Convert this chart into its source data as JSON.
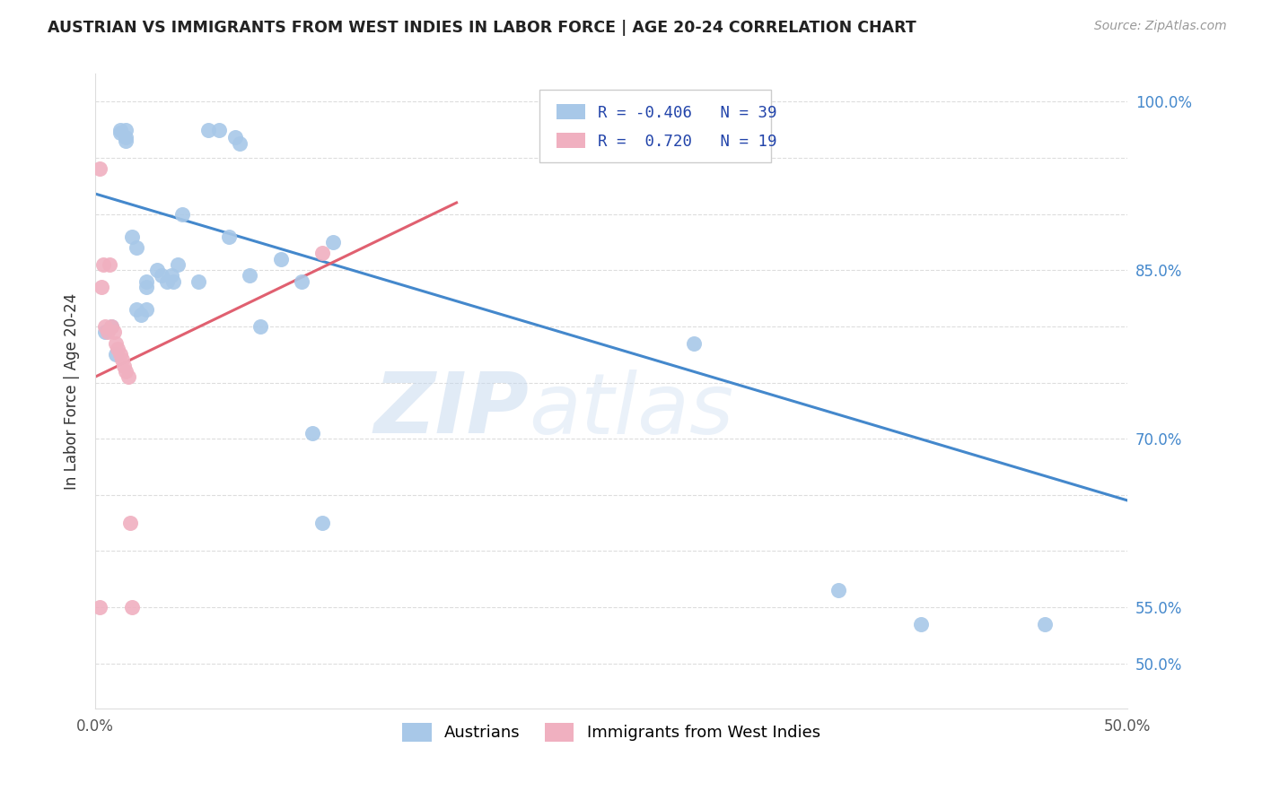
{
  "title": "AUSTRIAN VS IMMIGRANTS FROM WEST INDIES IN LABOR FORCE | AGE 20-24 CORRELATION CHART",
  "source": "Source: ZipAtlas.com",
  "ylabel": "In Labor Force | Age 20-24",
  "xlim": [
    0.0,
    0.5
  ],
  "ylim": [
    0.46,
    1.025
  ],
  "xticks": [
    0.0,
    0.1,
    0.2,
    0.3,
    0.4,
    0.5
  ],
  "xticklabels": [
    "0.0%",
    "",
    "",
    "",
    "",
    "50.0%"
  ],
  "yticks_right": [
    0.5,
    0.55,
    0.6,
    0.65,
    0.7,
    0.75,
    0.8,
    0.85,
    0.9,
    0.95,
    1.0
  ],
  "ytick_labels_right": [
    "50.0%",
    "55.0%",
    "",
    "",
    "70.0%",
    "",
    "",
    "85.0%",
    "",
    "",
    "100.0%"
  ],
  "legend_r_blue": "-0.406",
  "legend_n_blue": "39",
  "legend_r_pink": "0.720",
  "legend_n_pink": "19",
  "blue_scatter_x": [
    0.005,
    0.008,
    0.01,
    0.012,
    0.012,
    0.015,
    0.015,
    0.015,
    0.018,
    0.02,
    0.02,
    0.022,
    0.025,
    0.025,
    0.025,
    0.03,
    0.032,
    0.035,
    0.037,
    0.038,
    0.04,
    0.042,
    0.05,
    0.055,
    0.06,
    0.065,
    0.068,
    0.07,
    0.075,
    0.08,
    0.09,
    0.1,
    0.105,
    0.11,
    0.115,
    0.29,
    0.36,
    0.4,
    0.46
  ],
  "blue_scatter_y": [
    0.795,
    0.8,
    0.775,
    0.975,
    0.972,
    0.968,
    0.965,
    0.975,
    0.88,
    0.87,
    0.815,
    0.81,
    0.84,
    0.835,
    0.815,
    0.85,
    0.845,
    0.84,
    0.845,
    0.84,
    0.855,
    0.9,
    0.84,
    0.975,
    0.975,
    0.88,
    0.968,
    0.963,
    0.845,
    0.8,
    0.86,
    0.84,
    0.705,
    0.625,
    0.875,
    0.785,
    0.565,
    0.535,
    0.535
  ],
  "pink_scatter_x": [
    0.002,
    0.003,
    0.004,
    0.005,
    0.006,
    0.007,
    0.008,
    0.009,
    0.01,
    0.011,
    0.012,
    0.013,
    0.014,
    0.015,
    0.016,
    0.017,
    0.018,
    0.11,
    0.002
  ],
  "pink_scatter_y": [
    0.94,
    0.835,
    0.855,
    0.8,
    0.795,
    0.855,
    0.8,
    0.795,
    0.785,
    0.78,
    0.775,
    0.77,
    0.765,
    0.76,
    0.755,
    0.625,
    0.55,
    0.865,
    0.55
  ],
  "blue_line_x": [
    0.0,
    0.5
  ],
  "blue_line_y": [
    0.918,
    0.645
  ],
  "pink_line_x": [
    0.0,
    0.175
  ],
  "pink_line_y": [
    0.755,
    0.91
  ],
  "watermark_zip": "ZIP",
  "watermark_atlas": "atlas",
  "bg_color": "#ffffff",
  "scatter_blue_color": "#a8c8e8",
  "scatter_pink_color": "#f0b0c0",
  "line_blue_color": "#4488cc",
  "line_pink_color": "#e06070",
  "grid_color": "#dddddd",
  "title_color": "#222222",
  "source_color": "#999999",
  "right_tick_color": "#4488cc"
}
